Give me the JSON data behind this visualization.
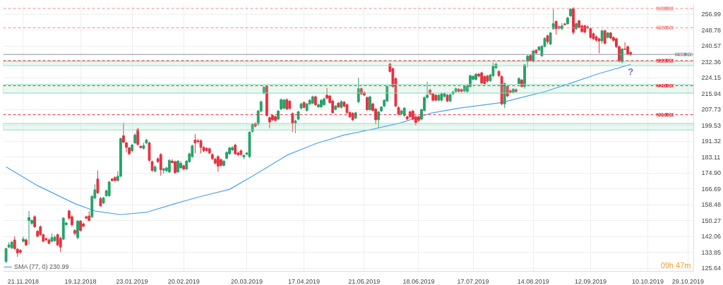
{
  "chart_data": {
    "type": "candlestick",
    "categories": [
      null,
      null,
      null,
      null,
      null,
      null,
      "21.11.2018",
      null,
      null,
      null,
      null,
      null,
      null,
      null,
      null,
      null,
      null,
      null,
      null,
      null,
      null,
      null,
      null,
      null,
      null,
      null,
      "19.12.2018",
      null,
      null,
      null,
      null,
      null,
      null,
      null,
      null,
      null,
      null,
      null,
      null,
      null,
      null,
      null,
      null,
      null,
      "23.01.2019",
      null,
      null,
      null,
      null,
      null,
      null,
      null,
      null,
      null,
      null,
      null,
      null,
      null,
      null,
      null,
      null,
      null,
      "20.02.2019",
      null,
      null,
      null,
      null,
      null,
      null,
      null,
      null,
      null,
      null,
      null,
      null,
      null,
      null,
      null,
      null,
      null,
      null,
      null,
      null,
      null,
      "20.03.2019",
      null,
      null,
      null,
      null,
      null,
      null,
      null,
      null,
      null,
      null,
      null,
      null,
      null,
      null,
      null,
      null,
      null,
      null,
      null,
      "17.04.2019",
      null,
      null,
      null,
      null,
      null,
      null,
      null,
      null,
      null,
      null,
      null,
      null,
      null,
      null,
      null,
      null,
      null,
      null,
      null,
      null,
      "21.05.2019",
      null,
      null,
      null,
      null,
      null,
      null,
      null,
      null,
      null,
      null,
      null,
      null,
      null,
      null,
      null,
      null,
      null,
      null,
      "18.06.2019",
      null,
      null,
      null,
      null,
      null,
      null,
      null,
      null,
      null,
      null,
      null,
      null,
      null,
      null,
      null,
      null,
      null,
      null,
      "17.07.2019",
      null,
      null,
      null,
      null,
      null,
      null,
      null,
      null,
      null,
      null,
      null,
      null,
      null,
      null,
      null,
      null,
      null,
      null,
      null,
      null,
      "14.08.2019",
      null,
      null,
      null,
      null,
      null,
      null,
      null,
      null,
      null,
      null,
      null,
      null,
      null,
      null,
      null,
      null,
      null,
      null,
      null,
      "12.09.2019",
      null,
      null,
      null,
      null,
      null,
      null,
      null,
      null,
      null,
      null,
      null,
      null,
      null,
      null,
      null,
      null,
      null,
      null,
      null,
      "10.10.2019",
      null,
      null,
      null,
      null,
      null,
      null,
      null,
      null,
      null,
      null,
      null,
      null,
      null,
      "29.10.2019"
    ],
    "ohlc": [
      [
        129.0,
        136.2,
        128.3,
        135.7
      ],
      [
        136.5,
        139.0,
        136.0,
        137.6
      ],
      [
        136.1,
        139.8,
        135.5,
        139.1
      ],
      [
        140.2,
        142.1,
        135.0,
        135.7
      ],
      [
        135.4,
        136.0,
        131.5,
        133.5
      ],
      [
        134.8,
        135.5,
        133.0,
        133.9
      ],
      [
        139.5,
        142.0,
        139.0,
        140.6
      ],
      [
        140.2,
        141.0,
        137.0,
        137.6
      ],
      [
        150.3,
        155.2,
        137.6,
        151.8
      ],
      [
        148.8,
        150.8,
        148.0,
        150.3
      ],
      [
        152.2,
        153.0,
        146.5,
        147.0
      ],
      [
        144.7,
        145.3,
        141.8,
        142.1
      ],
      [
        147.0,
        147.8,
        142.5,
        142.9
      ],
      [
        142.9,
        143.5,
        139.0,
        139.5
      ],
      [
        140.9,
        141.5,
        139.8,
        140.2
      ],
      [
        140.2,
        141.0,
        138.0,
        138.4
      ],
      [
        139.5,
        143.5,
        139.0,
        141.4
      ],
      [
        139.8,
        142.5,
        139.3,
        141.6
      ],
      [
        142.9,
        143.5,
        137.0,
        137.6
      ],
      [
        141.0,
        141.8,
        134.0,
        136.5
      ],
      [
        140.6,
        152.0,
        140.2,
        151.5
      ],
      [
        148.1,
        149.5,
        147.6,
        149.0
      ],
      [
        155.2,
        155.8,
        150.5,
        151.5
      ],
      [
        152.2,
        153.0,
        147.0,
        148.1
      ],
      [
        145.1,
        145.8,
        142.5,
        143.6
      ],
      [
        141.4,
        150.5,
        140.5,
        149.9
      ],
      [
        149.9,
        150.5,
        144.5,
        145.1
      ],
      [
        148.5,
        149.2,
        146.8,
        147.3
      ],
      [
        152.2,
        152.8,
        151.0,
        151.5
      ],
      [
        152.6,
        155.0,
        149.8,
        150.3
      ],
      [
        152.2,
        163.5,
        151.5,
        162.7
      ],
      [
        161.9,
        169.0,
        161.3,
        166.1
      ],
      [
        171.7,
        176.2,
        164.0,
        164.6
      ],
      [
        161.6,
        162.5,
        157.5,
        157.8
      ],
      [
        159.3,
        162.5,
        158.8,
        161.9
      ],
      [
        163.1,
        166.3,
        162.5,
        165.7
      ],
      [
        163.1,
        170.8,
        162.5,
        170.2
      ],
      [
        171.7,
        172.3,
        170.5,
        170.9
      ],
      [
        172.5,
        173.2,
        170.5,
        170.9
      ],
      [
        170.9,
        175.8,
        170.5,
        173.2
      ],
      [
        173.2,
        193.2,
        172.8,
        192.6
      ],
      [
        194.1,
        200.9,
        190.3,
        190.8
      ],
      [
        190.4,
        191.0,
        185.5,
        188.1
      ],
      [
        187.8,
        188.4,
        184.0,
        184.8
      ],
      [
        186.3,
        190.0,
        185.5,
        189.3
      ],
      [
        190.4,
        195.5,
        189.8,
        194.5
      ],
      [
        197.5,
        198.2,
        189.0,
        189.6
      ],
      [
        188.6,
        189.2,
        187.6,
        188.0
      ],
      [
        187.6,
        190.5,
        187.0,
        189.0
      ],
      [
        190.4,
        192.5,
        189.8,
        191.9
      ],
      [
        190.4,
        191.0,
        180.8,
        181.4
      ],
      [
        180.7,
        181.3,
        175.5,
        176.2
      ],
      [
        175.8,
        178.8,
        175.2,
        178.0
      ],
      [
        182.2,
        183.0,
        180.0,
        180.7
      ],
      [
        184.4,
        185.2,
        173.5,
        176.5
      ],
      [
        176.3,
        177.5,
        174.5,
        177.0
      ],
      [
        176.0,
        178.0,
        175.4,
        177.5
      ],
      [
        175.4,
        182.0,
        174.8,
        181.4
      ],
      [
        181.0,
        182.0,
        179.8,
        180.2
      ],
      [
        180.7,
        181.3,
        174.4,
        175.0
      ],
      [
        175.4,
        181.6,
        174.8,
        181.0
      ],
      [
        177.5,
        181.0,
        177.0,
        179.9
      ],
      [
        178.6,
        179.2,
        176.2,
        176.9
      ],
      [
        176.9,
        181.6,
        176.3,
        181.0
      ],
      [
        180.7,
        185.4,
        180.1,
        184.8
      ],
      [
        183.3,
        189.5,
        182.7,
        188.9
      ],
      [
        191.9,
        195.0,
        185.0,
        190.4
      ],
      [
        191.5,
        192.5,
        190.5,
        191.0
      ],
      [
        191.5,
        192.2,
        185.0,
        188.1
      ],
      [
        188.1,
        188.7,
        185.7,
        186.3
      ],
      [
        187.6,
        188.2,
        186.0,
        186.5
      ],
      [
        187.4,
        188.0,
        184.6,
        185.2
      ],
      [
        184.4,
        185.0,
        181.6,
        182.2
      ],
      [
        182.0,
        182.6,
        179.4,
        179.9
      ],
      [
        183.3,
        184.0,
        175.5,
        178.4
      ],
      [
        181.8,
        182.4,
        178.2,
        178.8
      ],
      [
        178.8,
        181.5,
        178.2,
        181.0
      ],
      [
        182.5,
        186.1,
        181.9,
        185.5
      ],
      [
        184.8,
        188.4,
        184.2,
        187.8
      ],
      [
        186.8,
        188.8,
        186.2,
        188.0
      ],
      [
        189.3,
        190.0,
        184.2,
        184.8
      ],
      [
        185.2,
        185.8,
        183.6,
        184.3
      ],
      [
        186.3,
        187.0,
        183.8,
        184.4
      ],
      [
        183.2,
        184.5,
        182.0,
        184.0
      ],
      [
        184.6,
        185.6,
        184.0,
        185.2
      ],
      [
        183.3,
        196.5,
        182.7,
        196.0
      ],
      [
        196.4,
        200.5,
        195.8,
        200.1
      ],
      [
        200.5,
        201.0,
        198.5,
        199.0
      ],
      [
        200.1,
        207.5,
        199.5,
        206.9
      ],
      [
        206.9,
        212.3,
        206.3,
        211.7
      ],
      [
        216.2,
        219.8,
        215.6,
        219.2
      ],
      [
        219.6,
        220.2,
        204.0,
        204.6
      ],
      [
        203.5,
        204.1,
        198.0,
        201.2
      ],
      [
        204.6,
        205.2,
        201.8,
        202.4
      ],
      [
        204.0,
        204.6,
        201.5,
        202.0
      ],
      [
        202.7,
        207.5,
        202.1,
        206.9
      ],
      [
        208.0,
        213.4,
        207.4,
        212.8
      ],
      [
        208.4,
        213.2,
        207.8,
        212.6
      ],
      [
        212.8,
        213.4,
        207.4,
        208.0
      ],
      [
        212.0,
        212.6,
        207.6,
        208.2
      ],
      [
        205.6,
        206.2,
        196.0,
        200.5
      ],
      [
        200.6,
        202.5,
        195.5,
        201.8
      ],
      [
        202.7,
        207.1,
        202.1,
        206.5
      ],
      [
        208.4,
        211.2,
        207.8,
        210.6
      ],
      [
        211.3,
        211.9,
        208.2,
        208.8
      ],
      [
        207.2,
        211.0,
        206.6,
        210.6
      ],
      [
        210.6,
        213.1,
        210.0,
        212.5
      ],
      [
        211.0,
        214.9,
        210.4,
        214.3
      ],
      [
        214.3,
        214.9,
        209.6,
        210.2
      ],
      [
        209.1,
        210.8,
        208.5,
        210.2
      ],
      [
        209.1,
        213.1,
        208.5,
        212.5
      ],
      [
        210.2,
        213.8,
        209.6,
        213.2
      ],
      [
        215.1,
        218.8,
        213.0,
        213.6
      ],
      [
        214.7,
        215.3,
        210.7,
        211.3
      ],
      [
        212.1,
        212.7,
        205.5,
        206.1
      ],
      [
        207.8,
        210.0,
        207.2,
        209.5
      ],
      [
        211.0,
        211.6,
        208.4,
        209.0
      ],
      [
        208.8,
        212.5,
        208.2,
        211.8
      ],
      [
        211.5,
        212.1,
        208.8,
        209.4
      ],
      [
        210.2,
        210.8,
        205.5,
        206.1
      ],
      [
        206.1,
        206.7,
        203.3,
        203.9
      ],
      [
        205.7,
        206.3,
        201.8,
        202.4
      ],
      [
        203.3,
        206.6,
        202.7,
        206.0
      ],
      [
        211.7,
        224.1,
        211.1,
        218.5
      ],
      [
        218.5,
        219.1,
        215.2,
        215.8
      ],
      [
        216.5,
        217.1,
        214.6,
        215.2
      ],
      [
        213.9,
        214.5,
        207.0,
        207.6
      ],
      [
        207.6,
        214.9,
        207.0,
        214.3
      ],
      [
        210.6,
        211.2,
        206.6,
        207.2
      ],
      [
        207.9,
        208.5,
        200.0,
        202.4
      ],
      [
        202.4,
        206.8,
        198.0,
        206.5
      ],
      [
        207.0,
        209.5,
        206.4,
        209.0
      ],
      [
        209.5,
        213.0,
        208.9,
        212.5
      ],
      [
        212.1,
        220.2,
        211.5,
        219.6
      ],
      [
        231.2,
        231.9,
        226.8,
        227.4
      ],
      [
        228.9,
        229.5,
        219.0,
        219.6
      ],
      [
        223.7,
        224.3,
        209.0,
        209.5
      ],
      [
        208.7,
        209.3,
        204.7,
        205.3
      ],
      [
        205.5,
        207.5,
        204.9,
        207.0
      ],
      [
        204.6,
        209.0,
        204.0,
        208.4
      ],
      [
        203.9,
        204.5,
        202.2,
        202.8
      ],
      [
        206.5,
        207.1,
        203.3,
        203.9
      ],
      [
        206.9,
        207.5,
        202.1,
        202.7
      ],
      [
        203.9,
        204.5,
        199.5,
        200.9
      ],
      [
        203.9,
        204.5,
        201.5,
        202.0
      ],
      [
        202.7,
        208.2,
        202.1,
        207.6
      ],
      [
        207.2,
        214.5,
        206.6,
        213.9
      ],
      [
        213.9,
        222.0,
        213.3,
        215.1
      ],
      [
        217.7,
        218.5,
        215.2,
        215.8
      ],
      [
        215.8,
        216.4,
        211.9,
        212.5
      ],
      [
        215.1,
        215.7,
        211.9,
        212.5
      ],
      [
        212.5,
        215.7,
        211.9,
        215.1
      ],
      [
        212.5,
        216.4,
        211.9,
        215.8
      ],
      [
        214.5,
        216.6,
        213.9,
        216.0
      ],
      [
        215.1,
        215.7,
        211.5,
        212.1
      ],
      [
        212.1,
        215.9,
        211.5,
        215.4
      ],
      [
        215.8,
        217.4,
        215.2,
        216.8
      ],
      [
        217.0,
        219.1,
        216.4,
        218.5
      ],
      [
        218.2,
        218.8,
        216.5,
        217.1
      ],
      [
        218.0,
        218.6,
        216.5,
        217.1
      ],
      [
        217.3,
        220.2,
        216.7,
        219.6
      ],
      [
        217.0,
        221.0,
        216.4,
        219.9
      ],
      [
        219.6,
        225.8,
        219.0,
        225.2
      ],
      [
        223.3,
        225.5,
        222.7,
        224.9
      ],
      [
        223.3,
        226.6,
        222.7,
        226.0
      ],
      [
        226.0,
        226.6,
        224.4,
        225.0
      ],
      [
        226.7,
        227.3,
        220.5,
        221.5
      ],
      [
        224.8,
        225.4,
        220.5,
        221.1
      ],
      [
        225.0,
        225.6,
        221.6,
        222.4
      ],
      [
        222.6,
        226.2,
        222.0,
        225.6
      ],
      [
        225.2,
        232.0,
        224.6,
        230.1
      ],
      [
        229.3,
        231.8,
        228.7,
        231.2
      ],
      [
        227.4,
        228.0,
        224.6,
        225.2
      ],
      [
        224.8,
        225.4,
        210.0,
        210.6
      ],
      [
        210.6,
        221.7,
        208.4,
        221.1
      ],
      [
        219.6,
        220.2,
        214.1,
        214.7
      ],
      [
        217.4,
        218.0,
        216.0,
        216.6
      ],
      [
        216.6,
        218.8,
        216.0,
        218.2
      ],
      [
        218.0,
        218.6,
        216.5,
        217.0
      ],
      [
        221.1,
        224.5,
        220.5,
        223.7
      ],
      [
        222.9,
        223.5,
        219.0,
        219.6
      ],
      [
        219.6,
        231.4,
        218.5,
        230.8
      ],
      [
        232.7,
        235.9,
        229.5,
        235.3
      ],
      [
        235.6,
        236.2,
        232.5,
        233.1
      ],
      [
        232.7,
        238.6,
        232.1,
        238.0
      ],
      [
        238.4,
        239.0,
        236.4,
        237.0
      ],
      [
        238.5,
        240.6,
        237.9,
        240.0
      ],
      [
        235.5,
        241.0,
        234.9,
        240.4
      ],
      [
        240.4,
        245.1,
        239.8,
        244.5
      ],
      [
        245.8,
        246.4,
        241.5,
        242.8
      ],
      [
        241.6,
        247.9,
        241.0,
        247.3
      ],
      [
        249.5,
        259.6,
        249.0,
        252.1
      ],
      [
        253.3,
        253.9,
        246.5,
        249.5
      ],
      [
        250.5,
        251.1,
        249.2,
        249.8
      ],
      [
        249.5,
        252.5,
        248.9,
        251.0
      ],
      [
        252.0,
        252.6,
        251.2,
        251.6
      ],
      [
        252.1,
        255.7,
        251.5,
        255.1
      ],
      [
        256.2,
        260.2,
        255.6,
        259.6
      ],
      [
        260.0,
        260.6,
        246.5,
        247.6
      ],
      [
        249.5,
        252.7,
        248.9,
        252.1
      ],
      [
        253.6,
        254.2,
        249.7,
        250.3
      ],
      [
        251.0,
        251.6,
        247.4,
        248.0
      ],
      [
        251.0,
        251.6,
        247.2,
        247.8
      ],
      [
        250.5,
        251.1,
        249.4,
        249.8
      ],
      [
        249.5,
        250.1,
        244.4,
        245.0
      ],
      [
        246.9,
        247.5,
        243.7,
        244.3
      ],
      [
        245.4,
        246.0,
        242.8,
        243.6
      ],
      [
        244.3,
        244.9,
        236.8,
        243.2
      ],
      [
        243.2,
        249.0,
        241.8,
        248.4
      ],
      [
        248.4,
        249.0,
        241.4,
        242.0
      ],
      [
        245.0,
        247.8,
        244.4,
        247.3
      ],
      [
        247.3,
        247.9,
        244.1,
        244.7
      ],
      [
        245.0,
        245.6,
        242.9,
        243.5
      ],
      [
        244.3,
        244.9,
        239.6,
        240.2
      ],
      [
        240.2,
        240.8,
        232.1,
        232.7
      ],
      [
        232.3,
        239.6,
        231.7,
        239.0
      ],
      [
        239.0,
        242.5,
        238.4,
        238.8
      ],
      [
        240.2,
        240.8,
        235.8,
        236.4
      ],
      [
        237.2,
        237.8,
        235.4,
        236.2
      ],
      null,
      null,
      null,
      null,
      null,
      null,
      null,
      null,
      null,
      null,
      null,
      null,
      null,
      null,
      null,
      null,
      null,
      null,
      null,
      null
    ],
    "colors": [
      "#26a269",
      "#26a269",
      "#26a269",
      "#e5323e",
      "#e5323e",
      "#e5323e",
      "#26a269",
      "#e5323e",
      "#26a269",
      "#26a269",
      "#e5323e",
      "#e5323e",
      "#e5323e",
      "#e5323e",
      "#e5323e",
      "#e5323e",
      "#26a269",
      "#26a269",
      "#e5323e",
      "#e5323e",
      "#26a269",
      "#26a269",
      "#e5323e",
      "#e5323e",
      "#e5323e",
      "#26a269",
      "#e5323e",
      "#e5323e",
      "#e5323e",
      "#e5323e",
      "#26a269",
      "#26a269",
      "#e5323e",
      "#e5323e",
      "#26a269",
      "#26a269",
      "#26a269",
      "#e5323e",
      "#e5323e",
      "#26a269",
      "#26a269",
      "#e5323e",
      "#e5323e",
      "#e5323e",
      "#26a269",
      "#26a269",
      "#e5323e",
      "#e5323e",
      "#26a269",
      "#26a269",
      "#e5323e",
      "#e5323e",
      "#26a269",
      "#e5323e",
      "#e5323e",
      "#26a269",
      "#26a269",
      "#26a269",
      "#e5323e",
      "#e5323e",
      "#26a269",
      "#26a269",
      "#e5323e",
      "#26a269",
      "#26a269",
      "#26a269",
      "#e5323e",
      "#e5323e",
      "#e5323e",
      "#e5323e",
      "#e5323e",
      "#e5323e",
      "#e5323e",
      "#e5323e",
      "#e5323e",
      "#e5323e",
      "#26a269",
      "#26a269",
      "#26a269",
      "#26a269",
      "#e5323e",
      "#e5323e",
      "#e5323e",
      "#26a269",
      "#26a269",
      "#26a269",
      "#26a269",
      "#e5323e",
      "#26a269",
      "#26a269",
      "#26a269",
      "#e5323e",
      "#e5323e",
      "#e5323e",
      "#e5323e",
      "#26a269",
      "#26a269",
      "#26a269",
      "#e5323e",
      "#e5323e",
      "#e5323e",
      "#26a269",
      "#26a269",
      "#26a269",
      "#e5323e",
      "#26a269",
      "#26a269",
      "#26a269",
      "#e5323e",
      "#26a269",
      "#26a269",
      "#26a269",
      "#e5323e",
      "#e5323e",
      "#e5323e",
      "#26a269",
      "#e5323e",
      "#26a269",
      "#e5323e",
      "#e5323e",
      "#e5323e",
      "#e5323e",
      "#26a269",
      "#26a269",
      "#e5323e",
      "#e5323e",
      "#e5323e",
      "#26a269",
      "#e5323e",
      "#e5323e",
      "#26a269",
      "#26a269",
      "#26a269",
      "#26a269",
      "#e5323e",
      "#e5323e",
      "#e5323e",
      "#e5323e",
      "#26a269",
      "#26a269",
      "#e5323e",
      "#e5323e",
      "#e5323e",
      "#e5323e",
      "#e5323e",
      "#26a269",
      "#26a269",
      "#26a269",
      "#e5323e",
      "#e5323e",
      "#e5323e",
      "#26a269",
      "#26a269",
      "#26a269",
      "#e5323e",
      "#26a269",
      "#26a269",
      "#26a269",
      "#e5323e",
      "#e5323e",
      "#26a269",
      "#26a269",
      "#26a269",
      "#26a269",
      "#26a269",
      "#e5323e",
      "#e5323e",
      "#e5323e",
      "#e5323e",
      "#26a269",
      "#26a269",
      "#26a269",
      "#e5323e",
      "#e5323e",
      "#26a269",
      "#e5323e",
      "#e5323e",
      "#26a269",
      "#e5323e",
      "#26a269",
      "#e5323e",
      "#26a269",
      "#26a269",
      "#e5323e",
      "#26a269",
      "#e5323e",
      "#26a269",
      "#26a269",
      "#26a269",
      "#e5323e",
      "#26a269",
      "#26a269",
      "#e5323e",
      "#e5323e",
      "#26a269",
      "#e5323e",
      "#26a269",
      "#26a269",
      "#e5323e",
      "#26a269",
      "#e5323e",
      "#e5323e",
      "#e5323e",
      "#e5323e",
      "#e5323e",
      "#e5323e",
      "#e5323e",
      "#e5323e",
      "#26a269",
      "#e5323e",
      "#26a269",
      "#e5323e",
      "#e5323e",
      "#e5323e",
      "#e5323e",
      "#26a269",
      "#e5323e",
      "#e5323e",
      "#e5323e",
      null,
      null,
      null,
      null,
      null,
      null,
      null,
      null,
      null,
      null,
      null,
      null,
      null,
      null,
      null,
      null,
      null,
      null,
      null,
      null
    ],
    "series": [
      {
        "type": "line",
        "name": "SMA (77, 0) 230.99",
        "color": "#4da3f0",
        "values": [
          178.0,
          null,
          null,
          null,
          null,
          null,
          null,
          null,
          null,
          null,
          null,
          168.3,
          null,
          null,
          null,
          null,
          null,
          null,
          null,
          null,
          null,
          null,
          null,
          null,
          159.0,
          null,
          null,
          null,
          null,
          null,
          null,
          155.2,
          null,
          null,
          null,
          null,
          null,
          null,
          null,
          null,
          153.3,
          null,
          null,
          null,
          null,
          null,
          null,
          null,
          null,
          154.5,
          null,
          null,
          null,
          null,
          null,
          null,
          null,
          null,
          null,
          159.0,
          null,
          null,
          null,
          null,
          null,
          null,
          null,
          null,
          162.7,
          null,
          null,
          null,
          null,
          null,
          null,
          null,
          null,
          null,
          166.4,
          null,
          null,
          null,
          null,
          null,
          null,
          null,
          173.2,
          null,
          null,
          null,
          null,
          null,
          null,
          null,
          null,
          null,
          null,
          null,
          184.0,
          null,
          null,
          null,
          null,
          null,
          null,
          null,
          null,
          null,
          190.0,
          null,
          null,
          null,
          null,
          null,
          null,
          null,
          null,
          null,
          194.5,
          null,
          null,
          null,
          null,
          null,
          null,
          null,
          null,
          null,
          197.5,
          null,
          null,
          null,
          null,
          null,
          null,
          null,
          null,
          null,
          200.9,
          null,
          null,
          null,
          null,
          null,
          null,
          null,
          null,
          null,
          205.7,
          null,
          null,
          null,
          null,
          null,
          null,
          null,
          null,
          null,
          208.4,
          null,
          null,
          null,
          null,
          null,
          null,
          null,
          null,
          null,
          null,
          null,
          null,
          null,
          null,
          211.3,
          null,
          null,
          null,
          null,
          213.2,
          null,
          null,
          null,
          null,
          null,
          null,
          null,
          null,
          null,
          216.9,
          null,
          null,
          null,
          null,
          null,
          null,
          null,
          null,
          null,
          221.8,
          null,
          null,
          null,
          null,
          null,
          null,
          null,
          null,
          226.3,
          null,
          null,
          null,
          null,
          null,
          null,
          null,
          null,
          null,
          null,
          231.0,
          null,
          null,
          null,
          null,
          null,
          null,
          null,
          null,
          null,
          null,
          null,
          null,
          null,
          null,
          null,
          null,
          null,
          null,
          null,
          null
        ]
      }
    ],
    "ylim": [
      124,
      262
    ],
    "yticks": [
      125.64,
      133.85,
      142.06,
      150.27,
      158.48,
      166.69,
      {
        "value": 174.9,
        "label": "174.90"
      },
      183.11,
      191.32,
      199.53,
      207.73,
      215.94,
      224.15,
      232.36,
      240.57,
      248.78,
      256.99
    ],
    "ref_lines": [
      {
        "axis": "y",
        "value": 260,
        "label": "260.00",
        "color": "#f28b8b",
        "line_style": "dashed"
      },
      {
        "axis": "y",
        "value": 250,
        "label": "250.00",
        "color": "#f28b8b",
        "line_style": "dashed"
      },
      {
        "axis": "y",
        "value": 236.2,
        "label": "236.20",
        "color": "#8a9099",
        "line_style": "solid"
      },
      {
        "axis": "y",
        "value": 233,
        "label": "233.00",
        "color": "#e0303a",
        "line_style": "dashed"
      },
      {
        "axis": "y",
        "value": 220,
        "label": "220.00",
        "color": "#e0303a",
        "line_style": "dashed"
      },
      {
        "axis": "y",
        "value": 205,
        "label": "205.00",
        "color": "#e0303a",
        "line_style": "dashed"
      }
    ],
    "bands": [
      {
        "axis": "y",
        "from": 197.1,
        "to": 200.5,
        "color": "#8fdcb8"
      },
      {
        "axis": "y",
        "from": 216.2,
        "to": 220.7,
        "color": "#8fdcb8"
      },
      {
        "axis": "y",
        "from": 230.4,
        "to": 232.7,
        "color": "#8fdcb8"
      }
    ],
    "annotations": [
      "?",
      "09h 47m"
    ],
    "grid": true,
    "legend": "bottom left"
  }
}
